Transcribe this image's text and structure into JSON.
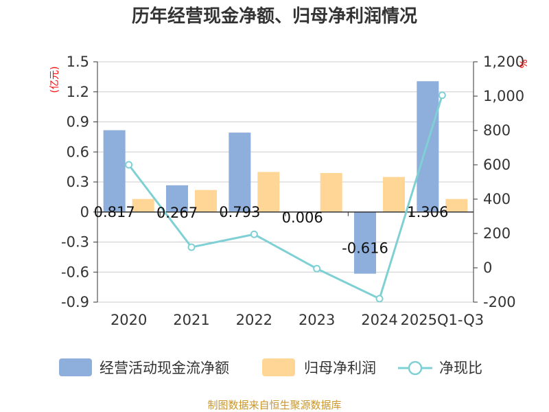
{
  "chart_data": {
    "type": "bar",
    "title": "历年经营现金净额、归母净利润情况",
    "left_unit": "(亿元)",
    "right_unit": "%",
    "categories": [
      "2020",
      "2021",
      "2022",
      "2023",
      "2024",
      "2025Q1-Q3"
    ],
    "left_ticks": [
      "1.5",
      "1.2",
      "0.9",
      "0.6",
      "0.3",
      "0",
      "-0.3",
      "-0.6",
      "-0.9"
    ],
    "right_ticks": [
      "1,200",
      "1,000",
      "800",
      "600",
      "400",
      "200",
      "0",
      "-200"
    ],
    "ylim_left": [
      -0.9,
      1.5
    ],
    "ylim_right": [
      -200,
      1200
    ],
    "series": [
      {
        "name": "经营活动现金流净额",
        "kind": "bar",
        "axis": "left",
        "color": "#8eaedb",
        "values": [
          0.817,
          0.267,
          0.793,
          0.006,
          -0.616,
          1.306
        ],
        "labels": [
          "0.817",
          "0.267",
          "0.793",
          "0.006",
          "-0.616",
          "1.306"
        ]
      },
      {
        "name": "归母净利润",
        "kind": "bar",
        "axis": "left",
        "color": "#ffd695",
        "values": [
          0.13,
          0.22,
          0.4,
          0.39,
          0.35,
          0.13
        ]
      },
      {
        "name": "净现比",
        "kind": "line",
        "axis": "right",
        "color": "#7fd0d4",
        "values": [
          600,
          120,
          195,
          -5,
          -180,
          1005
        ]
      }
    ],
    "grid": true,
    "legend_position": "bottom"
  },
  "footer": {
    "source": "制图数据来自恒生聚源数据库"
  }
}
